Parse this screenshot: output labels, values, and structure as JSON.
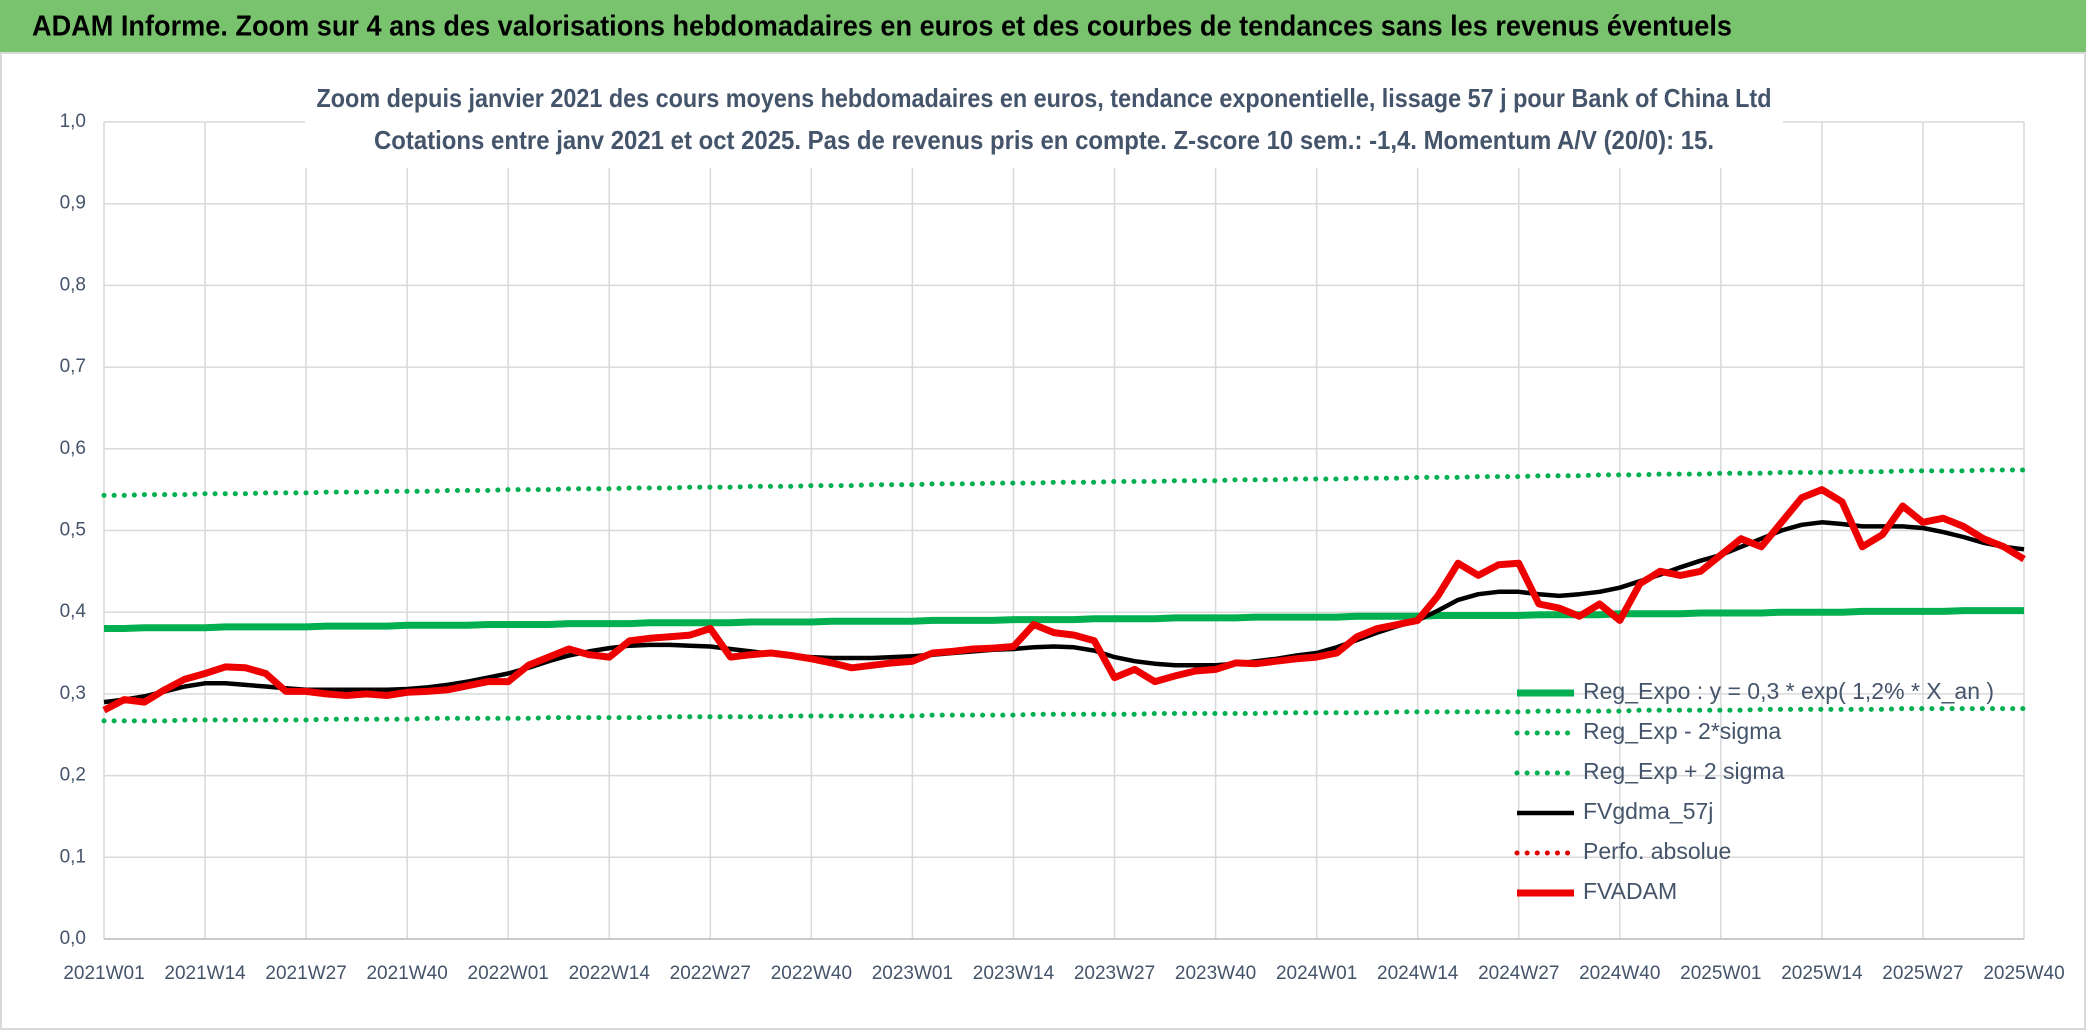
{
  "header": {
    "title": "ADAM Informe. Zoom sur 4 ans des valorisations hebdomadaires en euros et des courbes de tendances sans les revenus éventuels"
  },
  "chart_data": {
    "type": "line",
    "title": "Zoom depuis janvier 2021 des cours moyens hebdomadaires en euros, tendance exponentielle, lissage 57 j pour Bank of China Ltd",
    "subtitle": "Cotations entre janv 2021 et oct 2025. Pas de revenus pris en compte. Z-score 10 sem.: -1,4. Momentum A/V (20/0): 15.",
    "categories": [
      "2021W01",
      null,
      null,
      null,
      null,
      "2021W14",
      null,
      null,
      null,
      null,
      "2021W27",
      null,
      null,
      null,
      null,
      "2021W40",
      null,
      null,
      null,
      null,
      "2022W01",
      null,
      null,
      null,
      null,
      "2022W14",
      null,
      null,
      null,
      null,
      "2022W27",
      null,
      null,
      null,
      null,
      "2022W40",
      null,
      null,
      null,
      null,
      "2023W01",
      null,
      null,
      null,
      null,
      "2023W14",
      null,
      null,
      null,
      null,
      "2023W27",
      null,
      null,
      null,
      null,
      "2023W40",
      null,
      null,
      null,
      null,
      "2024W01",
      null,
      null,
      null,
      null,
      "2024W14",
      null,
      null,
      null,
      null,
      "2024W27",
      null,
      null,
      null,
      null,
      "2024W40",
      null,
      null,
      null,
      null,
      "2025W01",
      null,
      null,
      null,
      null,
      "2025W14",
      null,
      null,
      null,
      null,
      "2025W27",
      null,
      null,
      null,
      null,
      "2025W40"
    ],
    "ylim": [
      0,
      1
    ],
    "yticks": [
      {
        "value": 0,
        "label": "0,0"
      },
      {
        "value": 0.1,
        "label": "0,1"
      },
      {
        "value": 0.2,
        "label": "0,2"
      },
      {
        "value": 0.3,
        "label": "0,3"
      },
      {
        "value": 0.4,
        "label": "0,4"
      },
      {
        "value": 0.5,
        "label": "0,5"
      },
      {
        "value": 0.6,
        "label": "0,6"
      },
      {
        "value": 0.7,
        "label": "0,7"
      },
      {
        "value": 0.8,
        "label": "0,8"
      },
      {
        "value": 0.9,
        "label": "0,9"
      },
      {
        "value": 1,
        "label": "1,0"
      }
    ],
    "grid": true,
    "legend": "lower right",
    "series": [
      {
        "name": "Reg_Expo : y = 0,3 * exp( 1,2% *  X_an )",
        "color": "#00b050",
        "style": "solid",
        "values": [
          0.38,
          0.38,
          0.381,
          0.381,
          0.381,
          0.381,
          0.382,
          0.382,
          0.382,
          0.382,
          0.382,
          0.383,
          0.383,
          0.383,
          0.383,
          0.384,
          0.384,
          0.384,
          0.384,
          0.385,
          0.385,
          0.385,
          0.385,
          0.386,
          0.386,
          0.386,
          0.386,
          0.387,
          0.387,
          0.387,
          0.387,
          0.387,
          0.388,
          0.388,
          0.388,
          0.388,
          0.389,
          0.389,
          0.389,
          0.389,
          0.389,
          0.39,
          0.39,
          0.39,
          0.39,
          0.391,
          0.391,
          0.391,
          0.391,
          0.392,
          0.392,
          0.392,
          0.392,
          0.393,
          0.393,
          0.393,
          0.393,
          0.394,
          0.394,
          0.394,
          0.394,
          0.394,
          0.395,
          0.395,
          0.395,
          0.395,
          0.396,
          0.396,
          0.396,
          0.396,
          0.396,
          0.397,
          0.397,
          0.397,
          0.397,
          0.398,
          0.398,
          0.398,
          0.398,
          0.399,
          0.399,
          0.399,
          0.399,
          0.4,
          0.4,
          0.4,
          0.4,
          0.401,
          0.401,
          0.401,
          0.401,
          0.401,
          0.402,
          0.402,
          0.402,
          0.402
        ]
      },
      {
        "name": "Reg_Exp - 2*sigma",
        "color": "#00b050",
        "style": "dotted",
        "values": [
          0.267,
          0.267,
          0.267,
          0.267,
          0.268,
          0.268,
          0.268,
          0.268,
          0.268,
          0.268,
          0.268,
          0.269,
          0.269,
          0.269,
          0.269,
          0.269,
          0.27,
          0.27,
          0.27,
          0.27,
          0.27,
          0.27,
          0.271,
          0.271,
          0.271,
          0.271,
          0.271,
          0.271,
          0.272,
          0.272,
          0.272,
          0.272,
          0.272,
          0.272,
          0.273,
          0.273,
          0.273,
          0.273,
          0.273,
          0.273,
          0.273,
          0.274,
          0.274,
          0.274,
          0.274,
          0.274,
          0.275,
          0.275,
          0.275,
          0.275,
          0.275,
          0.275,
          0.276,
          0.276,
          0.276,
          0.276,
          0.276,
          0.276,
          0.277,
          0.277,
          0.277,
          0.277,
          0.277,
          0.277,
          0.278,
          0.278,
          0.278,
          0.278,
          0.278,
          0.278,
          0.278,
          0.279,
          0.279,
          0.279,
          0.279,
          0.279,
          0.28,
          0.28,
          0.28,
          0.28,
          0.28,
          0.28,
          0.281,
          0.281,
          0.281,
          0.281,
          0.281,
          0.281,
          0.281,
          0.282,
          0.282,
          0.282,
          0.282,
          0.282,
          0.282,
          0.282
        ]
      },
      {
        "name": "Reg_Exp + 2 sigma",
        "color": "#00b050",
        "style": "dotted",
        "values": [
          0.543,
          0.543,
          0.544,
          0.544,
          0.544,
          0.545,
          0.545,
          0.545,
          0.546,
          0.546,
          0.546,
          0.547,
          0.547,
          0.547,
          0.548,
          0.548,
          0.548,
          0.549,
          0.549,
          0.549,
          0.55,
          0.55,
          0.55,
          0.551,
          0.551,
          0.551,
          0.552,
          0.552,
          0.552,
          0.553,
          0.553,
          0.553,
          0.554,
          0.554,
          0.554,
          0.555,
          0.555,
          0.555,
          0.556,
          0.556,
          0.556,
          0.557,
          0.557,
          0.557,
          0.558,
          0.558,
          0.558,
          0.559,
          0.559,
          0.559,
          0.56,
          0.56,
          0.56,
          0.561,
          0.561,
          0.561,
          0.562,
          0.562,
          0.562,
          0.563,
          0.563,
          0.563,
          0.564,
          0.564,
          0.564,
          0.565,
          0.565,
          0.565,
          0.566,
          0.566,
          0.566,
          0.567,
          0.567,
          0.567,
          0.568,
          0.568,
          0.568,
          0.569,
          0.569,
          0.569,
          0.57,
          0.57,
          0.57,
          0.571,
          0.571,
          0.571,
          0.572,
          0.572,
          0.572,
          0.573,
          0.573,
          0.573,
          0.573,
          0.574,
          0.574,
          0.574
        ]
      },
      {
        "name": "FVgdma_57j",
        "color": "#000000",
        "style": "solid",
        "values": [
          0.29,
          0.293,
          0.297,
          0.303,
          0.309,
          0.313,
          0.313,
          0.311,
          0.309,
          0.307,
          0.305,
          0.305,
          0.305,
          0.305,
          0.305,
          0.306,
          0.308,
          0.311,
          0.315,
          0.32,
          0.325,
          0.332,
          0.34,
          0.347,
          0.352,
          0.356,
          0.359,
          0.36,
          0.36,
          0.359,
          0.358,
          0.355,
          0.352,
          0.349,
          0.347,
          0.345,
          0.344,
          0.344,
          0.344,
          0.345,
          0.346,
          0.348,
          0.35,
          0.352,
          0.354,
          0.355,
          0.357,
          0.358,
          0.357,
          0.353,
          0.345,
          0.34,
          0.337,
          0.335,
          0.335,
          0.335,
          0.337,
          0.34,
          0.343,
          0.347,
          0.35,
          0.357,
          0.366,
          0.375,
          0.383,
          0.39,
          0.402,
          0.415,
          0.422,
          0.425,
          0.425,
          0.422,
          0.42,
          0.422,
          0.425,
          0.43,
          0.438,
          0.446,
          0.455,
          0.463,
          0.47,
          0.48,
          0.49,
          0.5,
          0.507,
          0.51,
          0.508,
          0.505,
          0.505,
          0.505,
          0.503,
          0.498,
          0.492,
          0.485,
          0.48,
          0.477
        ]
      },
      {
        "name": "Perfo. absolue",
        "color": "#e00000",
        "style": "dotted",
        "values": [
          null,
          null,
          null,
          null,
          null,
          null,
          null,
          null,
          null,
          null,
          null,
          null,
          null,
          null,
          null,
          null,
          null,
          null,
          null,
          null,
          null,
          null,
          null,
          null,
          null,
          null,
          null,
          null,
          null,
          null,
          null,
          null,
          null,
          null,
          null,
          null,
          null,
          null,
          null,
          null,
          null,
          null,
          null,
          null,
          null,
          null,
          null,
          null,
          null,
          null,
          null,
          null,
          null,
          null,
          null,
          null,
          null,
          null,
          null,
          null,
          null,
          null,
          null,
          null,
          null,
          null,
          null,
          null,
          null,
          null,
          null,
          null,
          null,
          null,
          null,
          null,
          null,
          null,
          null,
          null,
          null,
          null,
          null,
          null,
          null,
          null,
          null,
          null,
          null,
          null,
          null,
          null,
          null,
          null,
          null,
          null
        ]
      },
      {
        "name": "FVADAM",
        "color": "#ee0000",
        "style": "solid",
        "values": [
          0.28,
          0.293,
          0.29,
          0.305,
          0.318,
          0.325,
          0.333,
          0.332,
          0.325,
          0.303,
          0.303,
          0.3,
          0.298,
          0.3,
          0.298,
          0.302,
          0.303,
          0.305,
          0.31,
          0.315,
          0.315,
          0.335,
          0.345,
          0.355,
          0.348,
          0.345,
          0.365,
          0.368,
          0.37,
          0.372,
          0.38,
          0.345,
          0.348,
          0.35,
          0.347,
          0.343,
          0.338,
          0.332,
          0.335,
          0.338,
          0.34,
          0.35,
          0.352,
          0.355,
          0.356,
          0.358,
          0.385,
          0.375,
          0.372,
          0.365,
          0.32,
          0.33,
          0.315,
          0.322,
          0.328,
          0.33,
          0.338,
          0.337,
          0.34,
          0.343,
          0.345,
          0.35,
          0.37,
          0.38,
          0.385,
          0.39,
          0.42,
          0.46,
          0.445,
          0.458,
          0.46,
          0.41,
          0.405,
          0.395,
          0.41,
          0.39,
          0.435,
          0.45,
          0.445,
          0.45,
          0.47,
          0.49,
          0.48,
          0.51,
          0.54,
          0.55,
          0.535,
          0.48,
          0.495,
          0.53,
          0.51,
          0.515,
          0.505,
          0.49,
          0.48,
          0.465
        ]
      }
    ]
  }
}
